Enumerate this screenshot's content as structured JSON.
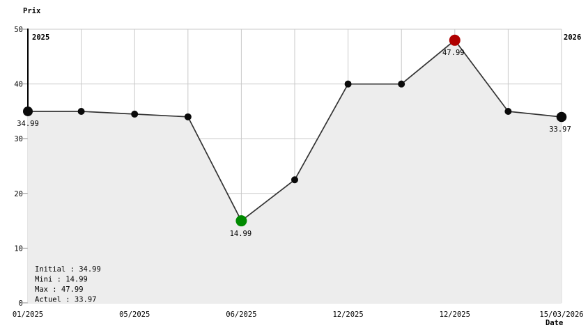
{
  "chart_data": {
    "type": "area",
    "y_axis_title": "Prix",
    "x_axis_title": "Date",
    "year_start_label": "2025",
    "year_end_label": "2026",
    "ylim": [
      0,
      50
    ],
    "yticks": [
      0,
      10,
      20,
      30,
      40,
      50
    ],
    "grid": true,
    "x_tick_labels": [
      {
        "label": "01/2025",
        "pos": 0
      },
      {
        "label": "05/2025",
        "pos": 2
      },
      {
        "label": "06/2025",
        "pos": 4
      },
      {
        "label": "12/2025",
        "pos": 6
      },
      {
        "label": "12/2025",
        "pos": 8
      },
      {
        "label": "15/03/2026",
        "pos": 10
      }
    ],
    "points": [
      {
        "i": 0,
        "value": 34.99,
        "kind": "initial",
        "label": "34.99"
      },
      {
        "i": 1,
        "value": 34.99,
        "kind": "normal"
      },
      {
        "i": 2,
        "value": 34.49,
        "kind": "normal"
      },
      {
        "i": 3,
        "value": 33.99,
        "kind": "normal"
      },
      {
        "i": 4,
        "value": 14.99,
        "kind": "min",
        "label": "14.99"
      },
      {
        "i": 5,
        "value": 22.49,
        "kind": "normal"
      },
      {
        "i": 6,
        "value": 39.99,
        "kind": "normal"
      },
      {
        "i": 7,
        "value": 39.99,
        "kind": "normal"
      },
      {
        "i": 8,
        "value": 47.99,
        "kind": "max",
        "label": "47.99"
      },
      {
        "i": 9,
        "value": 34.99,
        "kind": "normal"
      },
      {
        "i": 10,
        "value": 33.97,
        "kind": "current",
        "label": "33.97"
      }
    ],
    "legend": [
      {
        "name": "initial",
        "label": "Initial : 34.99",
        "color": "#000000"
      },
      {
        "name": "min",
        "label": "Mini : 14.99",
        "color": "#008a00"
      },
      {
        "name": "max",
        "label": "Max : 47.99",
        "color": "#aa0000"
      },
      {
        "name": "current",
        "label": "Actuel : 33.97",
        "color": "#000000"
      }
    ],
    "legend_position": "bottom-left-inside",
    "colors": {
      "line": "#333333",
      "fill": "#ededed",
      "grid": "#c8c8c8",
      "tick": "#888888",
      "axis": "#000000",
      "point": "#0a0a0a",
      "min": "#008a00",
      "min_text": "#008a00",
      "max": "#b00000",
      "max_text": "#aa0000"
    }
  }
}
